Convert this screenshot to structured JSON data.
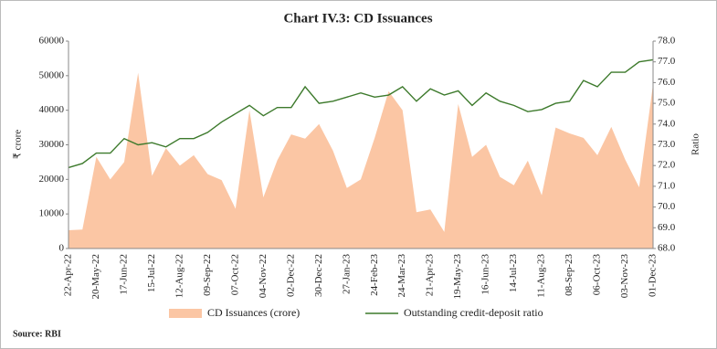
{
  "chart_data": {
    "type": "line",
    "title": "Chart IV.3: CD Issuances",
    "y_label": "₹ crore",
    "y2_label": "Ratio",
    "source": "Source: RBI",
    "categories": [
      "22-Apr-22",
      null,
      "20-May-22",
      null,
      "17-Jun-22",
      null,
      "15-Jul-22",
      null,
      "12-Aug-22",
      null,
      "09-Sep-22",
      null,
      "07-Oct-22",
      null,
      "04-Nov-22",
      null,
      "02-Dec-22",
      null,
      "30-Dec-22",
      null,
      "27-Jan-23",
      null,
      "24-Feb-23",
      null,
      "24-Mar-23",
      null,
      "21-Apr-23",
      null,
      "19-May-23",
      null,
      "16-Jun-23",
      null,
      "14-Jul-23",
      null,
      "11-Aug-23",
      null,
      "08-Sep-23",
      null,
      "06-Oct-23",
      null,
      "03-Nov-23",
      null,
      "01-Dec-23"
    ],
    "series": [
      {
        "name": "CD Issuances (crore)",
        "type": "area",
        "color": "#fbc6a4",
        "values": [
          5300,
          5500,
          26500,
          20000,
          25000,
          50800,
          21000,
          29000,
          24000,
          27000,
          21500,
          19800,
          11500,
          40000,
          14800,
          25500,
          33000,
          31800,
          36000,
          28300,
          17500,
          20000,
          32000,
          45500,
          40000,
          10500,
          11300,
          4800,
          41800,
          26500,
          30000,
          20700,
          18300,
          25400,
          15400,
          35000,
          33300,
          32000,
          27000,
          35200,
          25700,
          17700,
          47500
        ]
      },
      {
        "name": "Outstanding credit-deposit ratio",
        "type": "line",
        "axis": "y2",
        "color": "#3d7a2c",
        "values": [
          71.9,
          72.1,
          72.6,
          72.6,
          73.3,
          73.0,
          73.1,
          72.9,
          73.3,
          73.3,
          73.6,
          74.1,
          74.5,
          74.9,
          74.4,
          74.8,
          74.8,
          75.8,
          75.0,
          75.1,
          75.3,
          75.5,
          75.3,
          75.4,
          75.8,
          75.1,
          75.7,
          75.4,
          75.6,
          74.9,
          75.5,
          75.1,
          74.9,
          74.6,
          74.7,
          75.0,
          75.1,
          76.1,
          75.8,
          76.5,
          76.5,
          77.0,
          77.1
        ]
      }
    ],
    "ylim": [
      0,
      60000
    ],
    "yticks": [
      0,
      10000,
      20000,
      30000,
      40000,
      50000,
      60000
    ],
    "y2lim": [
      68,
      78
    ],
    "y2ticks": [
      {
        "value": 68,
        "label": "68.0"
      },
      {
        "value": 69,
        "label": "69.0"
      },
      {
        "value": 70,
        "label": "70.0"
      },
      {
        "value": 71,
        "label": "71.0"
      },
      {
        "value": 72,
        "label": "72.0"
      },
      {
        "value": 73,
        "label": "73.0"
      },
      {
        "value": 74,
        "label": "74.0"
      },
      {
        "value": 75,
        "label": "75.0"
      },
      {
        "value": 76,
        "label": "76.0"
      },
      {
        "value": 77,
        "label": "77.0"
      },
      {
        "value": 78,
        "label": "78.0"
      }
    ],
    "legend": "bottom",
    "grid": false
  }
}
